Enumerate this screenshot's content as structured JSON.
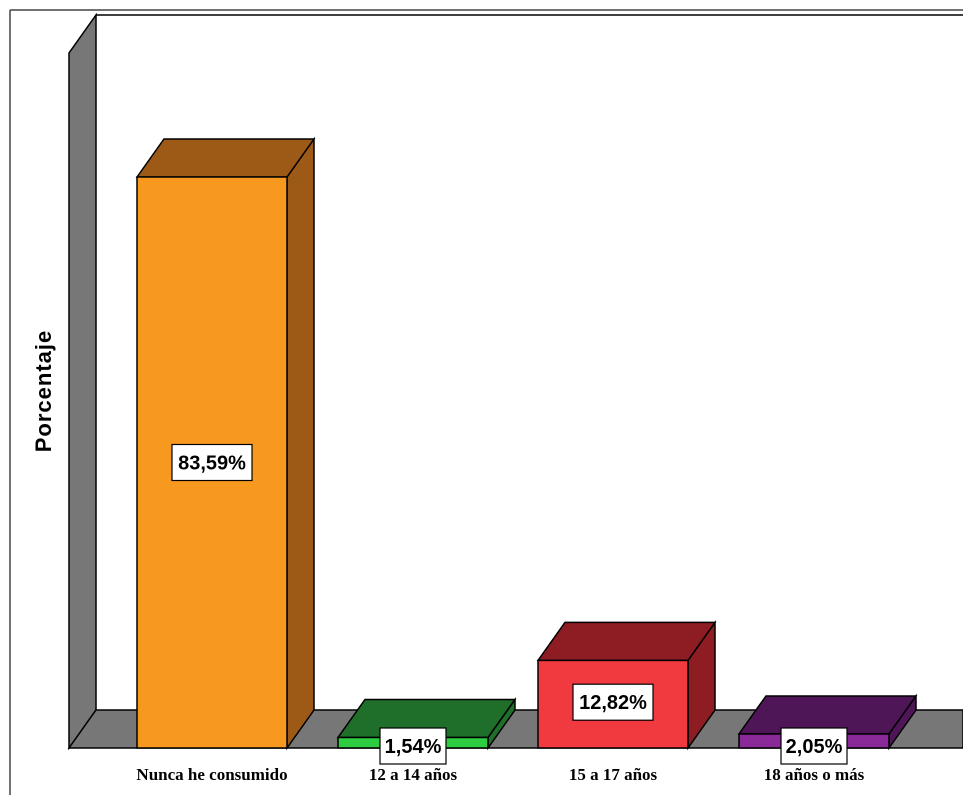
{
  "chart_data": {
    "type": "bar",
    "title": "",
    "xlabel": "",
    "ylabel": "Porcentaje",
    "ylim": [
      0,
      100
    ],
    "grid": false,
    "legend": "none",
    "categories": [
      "Nunca he consumido",
      "12 a 14 años",
      "15 a 17 años",
      "18 años o más"
    ],
    "values": [
      83.59,
      1.54,
      12.82,
      2.05
    ],
    "data_labels": [
      "83,59%",
      "1,54%",
      "12,82%",
      "2,05%"
    ],
    "colors": [
      {
        "front": "#f7981f",
        "top": "#9c5a16",
        "side": "#9c5a16"
      },
      {
        "front": "#2ecc40",
        "top": "#1f6e2a",
        "side": "#1f6e2a"
      },
      {
        "front": "#f03a3f",
        "top": "#8e1d23",
        "side": "#8e1d23"
      },
      {
        "front": "#8a2a99",
        "top": "#4e1656",
        "side": "#4e1656"
      }
    ],
    "wall_color": "#777777"
  }
}
